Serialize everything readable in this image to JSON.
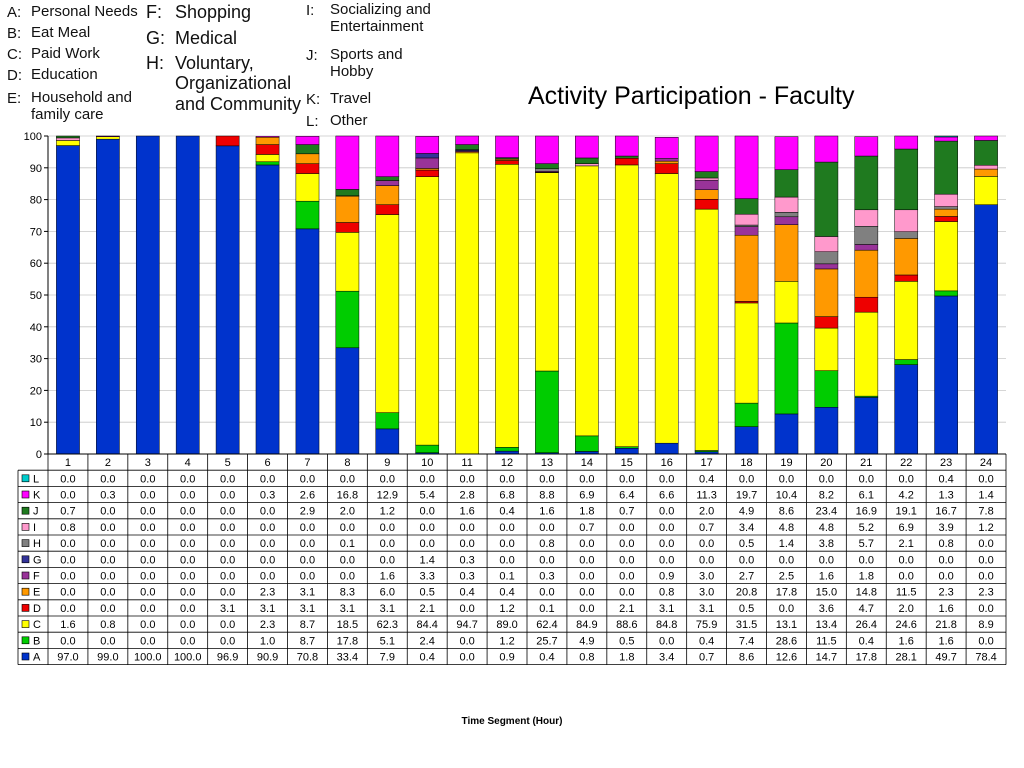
{
  "legend_block": {
    "items": [
      {
        "letter": "A:",
        "name": "Personal Needs"
      },
      {
        "letter": "B:",
        "name": "Eat Meal"
      },
      {
        "letter": "C:",
        "name": "Paid Work"
      },
      {
        "letter": "D:",
        "name": "Education"
      },
      {
        "letter": "E:",
        "name": "Household and\nfamily care"
      },
      {
        "letter": "F:",
        "name": "Shopping"
      },
      {
        "letter": "G:",
        "name": "Medical"
      },
      {
        "letter": "H:",
        "name": "Voluntary,\nOrganizational\nand Community"
      },
      {
        "letter": "I:",
        "name": "Socializing and\nEntertainment"
      },
      {
        "letter": "J:",
        "name": "Sports and\nHobby"
      },
      {
        "letter": "K:",
        "name": "Travel"
      },
      {
        "letter": "L:",
        "name": "Other"
      }
    ]
  },
  "chart_data": {
    "type": "bar",
    "stacked": true,
    "title": "Activity Participation - Faculty",
    "xlabel": "Time Segment (Hour)",
    "ylabel": "",
    "ylim": [
      0,
      100
    ],
    "yticks": [
      0,
      10,
      20,
      30,
      40,
      50,
      60,
      70,
      80,
      90,
      100
    ],
    "grid": true,
    "categories": [
      "1",
      "2",
      "3",
      "4",
      "5",
      "6",
      "7",
      "8",
      "9",
      "10",
      "11",
      "12",
      "13",
      "14",
      "15",
      "16",
      "17",
      "18",
      "19",
      "20",
      "21",
      "22",
      "23",
      "24"
    ],
    "series": [
      {
        "name": "A",
        "color": "#0033cc",
        "values": [
          "97.0",
          "99.0",
          "100.0",
          "100.0",
          "96.9",
          "90.9",
          "70.8",
          "33.4",
          "7.9",
          "0.4",
          "0.0",
          "0.9",
          "0.4",
          "0.8",
          "1.8",
          "3.4",
          "0.7",
          "8.6",
          "12.6",
          "14.7",
          "17.8",
          "28.1",
          "49.7",
          "78.4"
        ]
      },
      {
        "name": "B",
        "color": "#00cc00",
        "values": [
          "0.0",
          "0.0",
          "0.0",
          "0.0",
          "0.0",
          "1.0",
          "8.7",
          "17.8",
          "5.1",
          "2.4",
          "0.0",
          "1.2",
          "25.7",
          "4.9",
          "0.5",
          "0.0",
          "0.4",
          "7.4",
          "28.6",
          "11.5",
          "0.4",
          "1.6",
          "1.6",
          "0.0"
        ]
      },
      {
        "name": "C",
        "color": "#ffff00",
        "values": [
          "1.6",
          "0.8",
          "0.0",
          "0.0",
          "0.0",
          "2.3",
          "8.7",
          "18.5",
          "62.3",
          "84.4",
          "94.7",
          "89.0",
          "62.4",
          "84.9",
          "88.6",
          "84.8",
          "75.9",
          "31.5",
          "13.1",
          "13.4",
          "26.4",
          "24.6",
          "21.8",
          "8.9"
        ]
      },
      {
        "name": "D",
        "color": "#ee0000",
        "values": [
          "0.0",
          "0.0",
          "0.0",
          "0.0",
          "3.1",
          "3.1",
          "3.1",
          "3.1",
          "3.1",
          "2.1",
          "0.0",
          "1.2",
          "0.1",
          "0.0",
          "2.1",
          "3.1",
          "3.1",
          "0.5",
          "0.0",
          "3.6",
          "4.7",
          "2.0",
          "1.6",
          "0.0"
        ]
      },
      {
        "name": "E",
        "color": "#ff9900",
        "values": [
          "0.0",
          "0.0",
          "0.0",
          "0.0",
          "0.0",
          "2.3",
          "3.1",
          "8.3",
          "6.0",
          "0.5",
          "0.4",
          "0.4",
          "0.0",
          "0.0",
          "0.0",
          "0.8",
          "3.0",
          "20.8",
          "17.8",
          "15.0",
          "14.8",
          "11.5",
          "2.3",
          "2.3"
        ]
      },
      {
        "name": "F",
        "color": "#993399",
        "values": [
          "0.0",
          "0.0",
          "0.0",
          "0.0",
          "0.0",
          "0.0",
          "0.0",
          "0.0",
          "1.6",
          "3.3",
          "0.3",
          "0.1",
          "0.3",
          "0.0",
          "0.0",
          "0.9",
          "3.0",
          "2.7",
          "2.5",
          "1.6",
          "1.8",
          "0.0",
          "0.0",
          "0.0"
        ]
      },
      {
        "name": "G",
        "color": "#333399",
        "values": [
          "0.0",
          "0.0",
          "0.0",
          "0.0",
          "0.0",
          "0.0",
          "0.0",
          "0.0",
          "0.0",
          "1.4",
          "0.3",
          "0.0",
          "0.0",
          "0.0",
          "0.0",
          "0.0",
          "0.0",
          "0.0",
          "0.0",
          "0.0",
          "0.0",
          "0.0",
          "0.0",
          "0.0"
        ]
      },
      {
        "name": "H",
        "color": "#808080",
        "values": [
          "0.0",
          "0.0",
          "0.0",
          "0.0",
          "0.0",
          "0.0",
          "0.0",
          "0.1",
          "0.0",
          "0.0",
          "0.0",
          "0.0",
          "0.8",
          "0.0",
          "0.0",
          "0.0",
          "0.0",
          "0.5",
          "1.4",
          "3.8",
          "5.7",
          "2.1",
          "0.8",
          "0.0"
        ]
      },
      {
        "name": "I",
        "color": "#ff99cc",
        "values": [
          "0.8",
          "0.0",
          "0.0",
          "0.0",
          "0.0",
          "0.0",
          "0.0",
          "0.0",
          "0.0",
          "0.0",
          "0.0",
          "0.0",
          "0.0",
          "0.7",
          "0.0",
          "0.0",
          "0.7",
          "3.4",
          "4.8",
          "4.8",
          "5.2",
          "6.9",
          "3.9",
          "1.2"
        ]
      },
      {
        "name": "J",
        "color": "#1f7a1f",
        "values": [
          "0.7",
          "0.0",
          "0.0",
          "0.0",
          "0.0",
          "0.0",
          "2.9",
          "2.0",
          "1.2",
          "0.0",
          "1.6",
          "0.4",
          "1.6",
          "1.8",
          "0.7",
          "0.0",
          "2.0",
          "4.9",
          "8.6",
          "23.4",
          "16.9",
          "19.1",
          "16.7",
          "7.8"
        ]
      },
      {
        "name": "K",
        "color": "#ff00ff",
        "values": [
          "0.0",
          "0.3",
          "0.0",
          "0.0",
          "0.0",
          "0.3",
          "2.6",
          "16.8",
          "12.9",
          "5.4",
          "2.8",
          "6.8",
          "8.8",
          "6.9",
          "6.4",
          "6.6",
          "11.3",
          "19.7",
          "10.4",
          "8.2",
          "6.1",
          "4.2",
          "1.3",
          "1.4"
        ]
      },
      {
        "name": "L",
        "color": "#00cccc",
        "values": [
          "0.0",
          "0.0",
          "0.0",
          "0.0",
          "0.0",
          "0.0",
          "0.0",
          "0.0",
          "0.0",
          "0.0",
          "0.0",
          "0.0",
          "0.0",
          "0.0",
          "0.0",
          "0.0",
          "0.4",
          "0.0",
          "0.0",
          "0.0",
          "0.0",
          "0.0",
          "0.4",
          "0.0"
        ]
      }
    ]
  }
}
